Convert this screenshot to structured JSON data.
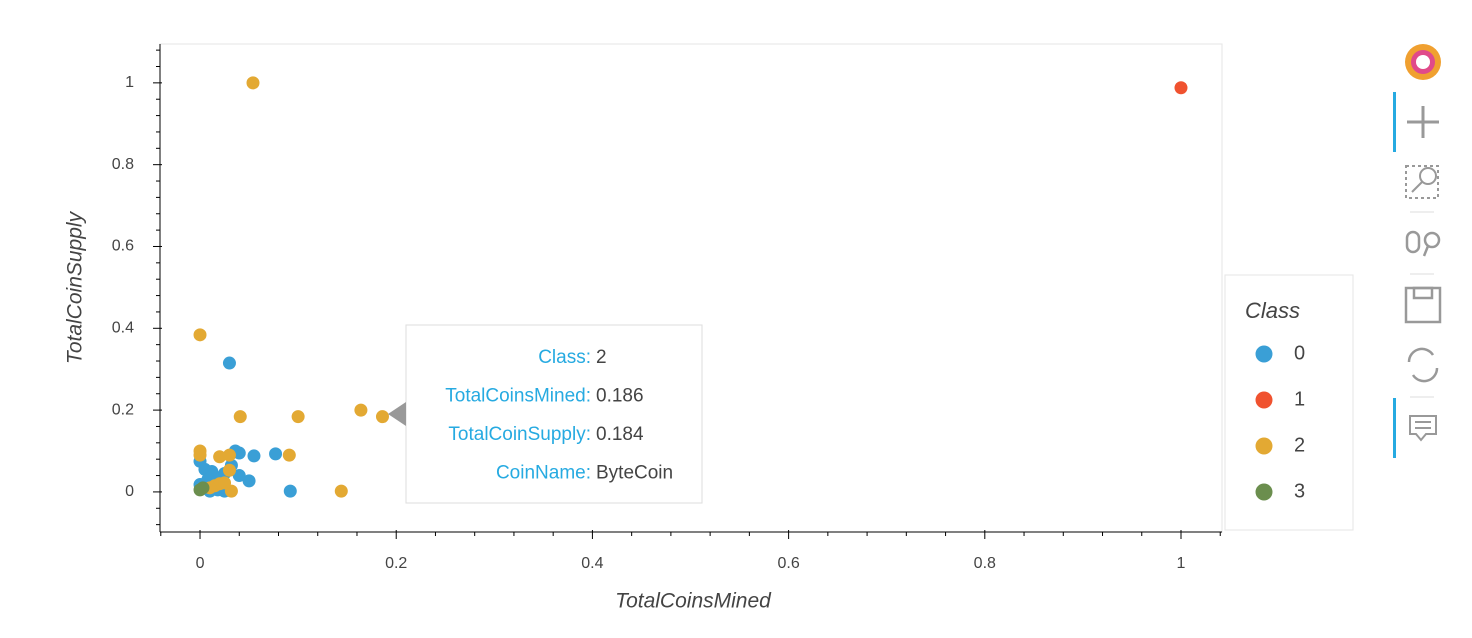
{
  "chart_data": {
    "type": "scatter",
    "x_label": "TotalCoinsMined",
    "y_label": "TotalCoinSupply",
    "legend_title": "Class",
    "legend": "right",
    "xlim": [
      -0.0408,
      1.0418
    ],
    "ylim": [
      -0.098,
      1.095
    ],
    "xticks": [
      0,
      0.2,
      0.4,
      0.6,
      0.8,
      1
    ],
    "yticks": [
      0,
      0.2,
      0.4,
      0.6,
      0.8,
      1
    ],
    "xminorticks": [
      -0.04,
      0.04,
      0.08,
      0.12,
      0.16,
      0.24,
      0.28,
      0.32,
      0.36,
      0.44,
      0.48,
      0.52,
      0.56,
      0.64,
      0.68,
      0.72,
      0.76,
      0.84,
      0.88,
      0.92,
      0.96,
      1.04
    ],
    "yminorticks": [
      -0.08,
      -0.04,
      0.04,
      0.08,
      0.12,
      0.16,
      0.24,
      0.28,
      0.32,
      0.36,
      0.44,
      0.48,
      0.52,
      0.56,
      0.64,
      0.68,
      0.72,
      0.76,
      0.84,
      0.88,
      0.92,
      0.96,
      1.04,
      1.08
    ],
    "series": [
      {
        "name": "0",
        "color": "#3a9fd6",
        "x": [
          0.03,
          0.077,
          0.055,
          0.036,
          0.04,
          0.05,
          0.04,
          0.092,
          0,
          0.005,
          0.012,
          0.02,
          0.025,
          0.032,
          0,
          0.01,
          0.018,
          0.025,
          0.008
        ],
        "values": [
          0.315,
          0.093,
          0.088,
          0.1,
          0.095,
          0.027,
          0.04,
          0.002,
          0.075,
          0.055,
          0.05,
          0.035,
          0.045,
          0.065,
          0.018,
          0.002,
          0.005,
          0.002,
          0.03
        ]
      },
      {
        "name": "1",
        "color": "#f0522f",
        "x": [
          1
        ],
        "values": [
          0.988
        ]
      },
      {
        "name": "2",
        "color": "#e3a933",
        "x": [
          0.054,
          0,
          0.041,
          0.1,
          0.164,
          0.186,
          0.091,
          0.144,
          0,
          0,
          0.02,
          0.03,
          0.03,
          0.032,
          0.015,
          0.02,
          0.025,
          0.01
        ],
        "values": [
          1,
          0.384,
          0.184,
          0.184,
          0.2,
          0.184,
          0.09,
          0.002,
          0.1,
          0.09,
          0.086,
          0.09,
          0.053,
          0.002,
          0.015,
          0.02,
          0.022,
          0.01
        ]
      },
      {
        "name": "3",
        "color": "#6b8e4e",
        "x": [
          0,
          0.003
        ],
        "values": [
          0.005,
          0.01
        ]
      }
    ],
    "tooltip": [
      {
        "label": "Class:",
        "value": "2"
      },
      {
        "label": "TotalCoinsMined:",
        "value": "0.186"
      },
      {
        "label": "TotalCoinSupply:",
        "value": "0.184"
      },
      {
        "label": "CoinName:",
        "value": "ByteCoin"
      }
    ]
  }
}
